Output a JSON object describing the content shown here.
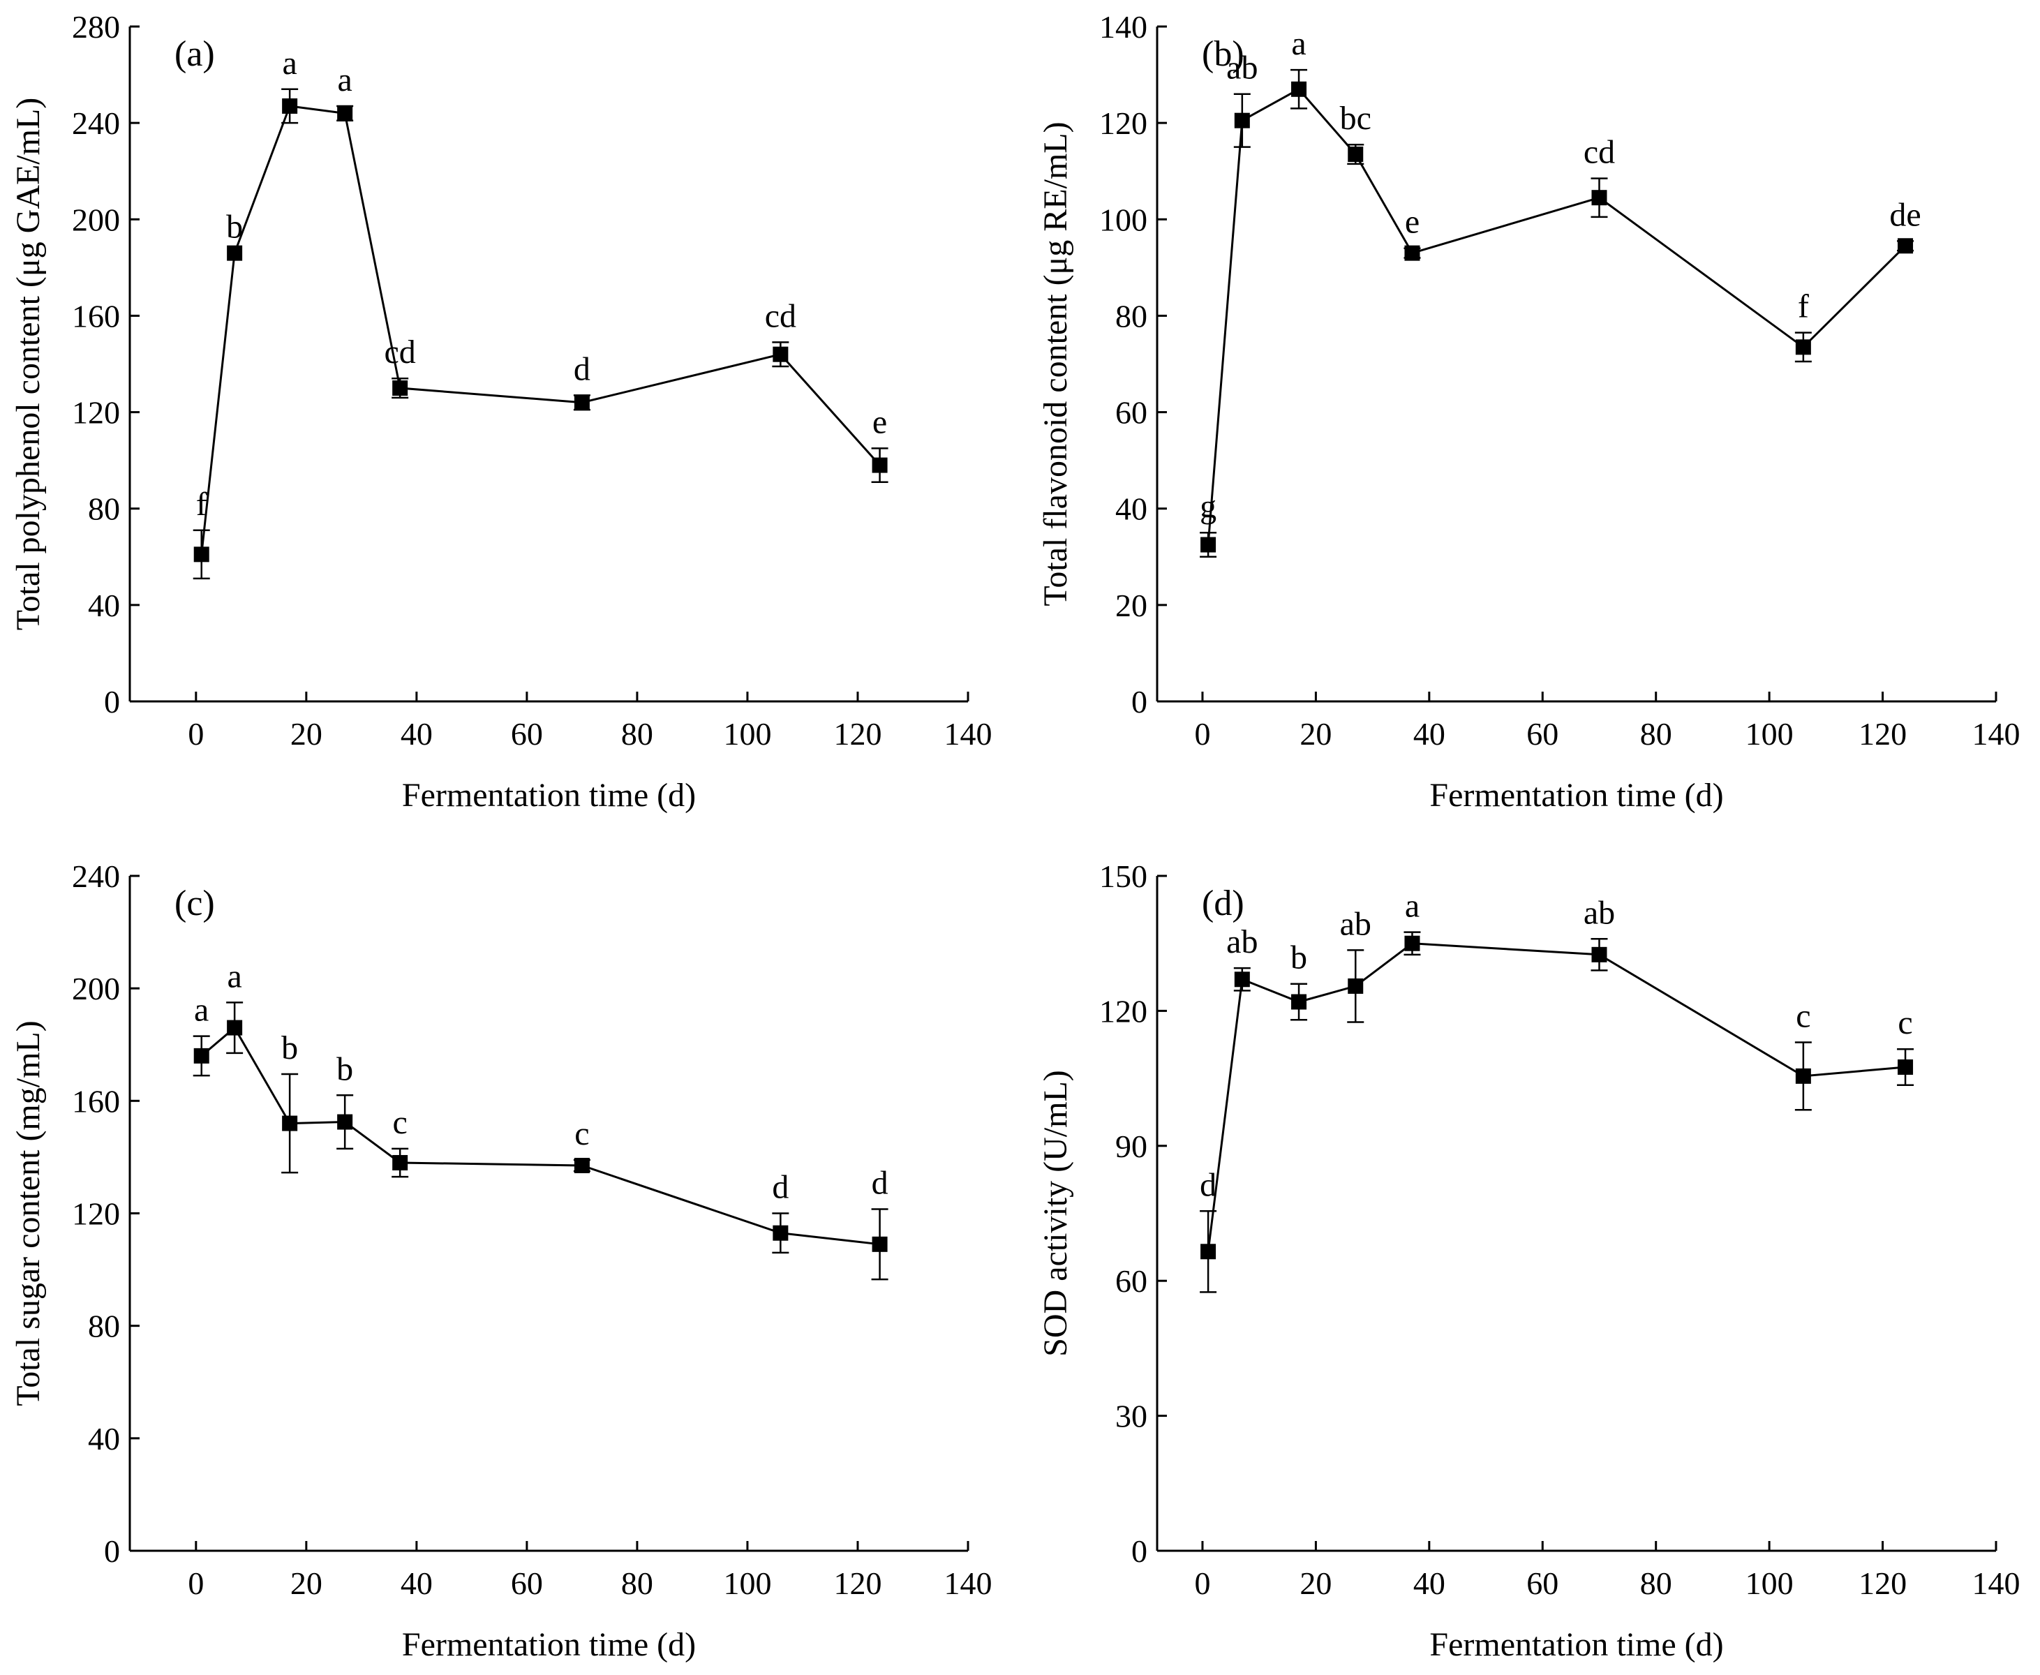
{
  "chart_data": [
    {
      "type": "line",
      "panel_label": "(a)",
      "title": "",
      "xlabel": "Fermentation time (d)",
      "ylabel": "Total polyphenol content (μg GAE/mL)",
      "xlim": [
        -12,
        140
      ],
      "ylim": [
        0,
        280
      ],
      "xticks": [
        0,
        20,
        40,
        60,
        80,
        100,
        120,
        140
      ],
      "yticks": [
        0,
        40,
        80,
        120,
        160,
        200,
        240,
        280
      ],
      "x": [
        1,
        7,
        17,
        27,
        37,
        70,
        106,
        124
      ],
      "values": [
        61,
        186,
        247,
        244,
        130,
        124,
        144,
        98
      ],
      "errors": [
        10,
        0,
        7,
        3,
        4,
        3,
        5,
        7
      ],
      "significance": [
        "f",
        "b",
        "a",
        "a",
        "cd",
        "d",
        "cd",
        "e"
      ]
    },
    {
      "type": "line",
      "panel_label": "(b)",
      "title": "",
      "xlabel": "Fermentation time (d)",
      "ylabel": "Total flavonoid content (μg RE/mL)",
      "xlim": [
        -8,
        140
      ],
      "ylim": [
        0,
        140
      ],
      "xticks": [
        0,
        20,
        40,
        60,
        80,
        100,
        120,
        140
      ],
      "yticks": [
        0,
        20,
        40,
        60,
        80,
        100,
        120,
        140
      ],
      "x": [
        1,
        7,
        17,
        27,
        37,
        70,
        106,
        124
      ],
      "values": [
        32.5,
        120.5,
        127,
        113.5,
        93,
        104.5,
        73.5,
        94.5
      ],
      "errors": [
        2.5,
        5.5,
        4,
        2,
        1,
        4,
        3,
        1
      ],
      "significance": [
        "g",
        "ab",
        "a",
        "bc",
        "e",
        "cd",
        "f",
        "de"
      ]
    },
    {
      "type": "line",
      "panel_label": "(c)",
      "title": "",
      "xlabel": "Fermentation time (d)",
      "ylabel": "Total sugar content (mg/mL)",
      "xlim": [
        -12,
        140
      ],
      "ylim": [
        0,
        240
      ],
      "xticks": [
        0,
        20,
        40,
        60,
        80,
        100,
        120,
        140
      ],
      "yticks": [
        0,
        40,
        80,
        120,
        160,
        200,
        240
      ],
      "x": [
        1,
        7,
        17,
        27,
        37,
        70,
        106,
        124
      ],
      "values": [
        176,
        186,
        152,
        152.5,
        138,
        137,
        113,
        109
      ],
      "errors": [
        7,
        9,
        17.5,
        9.5,
        5,
        2,
        7,
        12.5
      ],
      "significance": [
        "a",
        "a",
        "b",
        "b",
        "c",
        "c",
        "d",
        "d"
      ]
    },
    {
      "type": "line",
      "panel_label": "(d)",
      "title": "",
      "xlabel": "Fermentation time (d)",
      "ylabel": "SOD activity (U/mL)",
      "xlim": [
        -8,
        140
      ],
      "ylim": [
        0,
        150
      ],
      "xticks": [
        0,
        20,
        40,
        60,
        80,
        100,
        120,
        140
      ],
      "yticks": [
        0,
        30,
        60,
        90,
        120,
        150
      ],
      "x": [
        1,
        7,
        17,
        27,
        37,
        70,
        106,
        124
      ],
      "values": [
        66.5,
        127,
        122,
        125.5,
        135,
        132.5,
        105.5,
        107.5
      ],
      "errors": [
        9,
        2.5,
        4,
        8,
        2.5,
        3.5,
        7.5,
        4
      ],
      "significance": [
        "d",
        "ab",
        "b",
        "ab",
        "a",
        "ab",
        "c",
        "c"
      ]
    }
  ]
}
